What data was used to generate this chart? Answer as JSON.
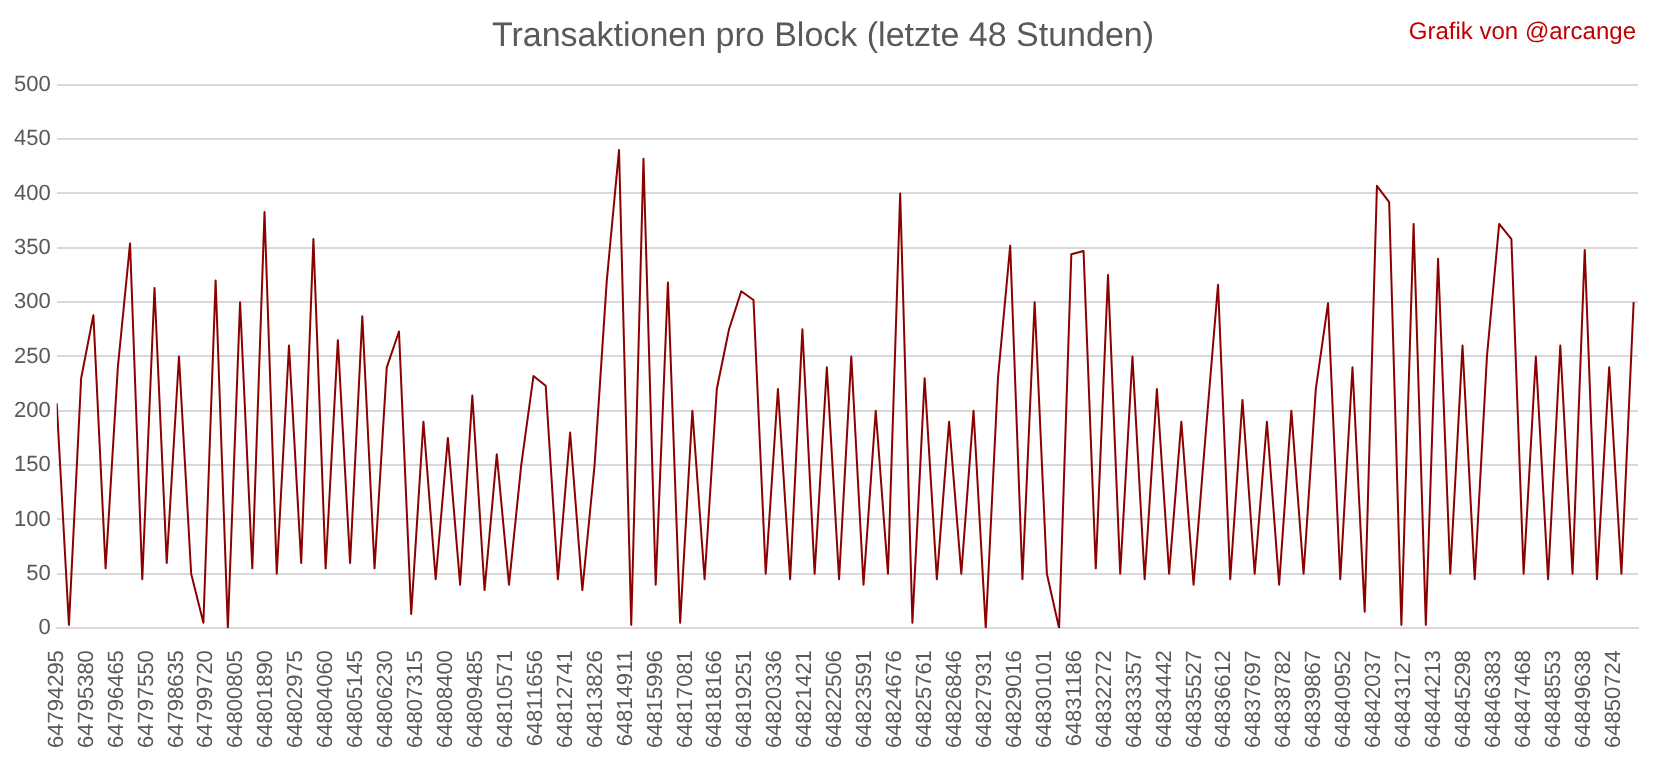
{
  "chart_data": {
    "type": "line",
    "title": "Transaktionen pro Block (letzte 48 Stunden)",
    "annotations": [
      "Grafik von @arcange"
    ],
    "grid": "y",
    "legend": false,
    "marker": "none",
    "line_style": "solid",
    "xlim": [
      64794295,
      64851600
    ],
    "ylim": [
      0,
      500
    ],
    "yticks": [
      0,
      50,
      100,
      150,
      200,
      250,
      300,
      350,
      400,
      450,
      500
    ],
    "xticks": [
      64794295,
      64795380,
      64796465,
      64797550,
      64798635,
      64799720,
      64800805,
      64801890,
      64802975,
      64804060,
      64805145,
      64806230,
      64807315,
      64808400,
      64809485,
      64810571,
      64811656,
      64812741,
      64813826,
      64814911,
      64815996,
      64817081,
      64818166,
      64819251,
      64820336,
      64821421,
      64822506,
      64823591,
      64824676,
      64825761,
      64826846,
      64827931,
      64829016,
      64830101,
      64831186,
      64832272,
      64833357,
      64834442,
      64835527,
      64836612,
      64837697,
      64838782,
      64839867,
      64840952,
      64842037,
      64843127,
      64844213,
      64845298,
      64846383,
      64847468,
      64848553,
      64849638,
      64850724
    ],
    "series": [
      {
        "color": "#8b0000",
        "x": [
          64794295,
          64794738,
          64795181,
          64795624,
          64796067,
          64796510,
          64796953,
          64797396,
          64797839,
          64798282,
          64798725,
          64799168,
          64799611,
          64800054,
          64800497,
          64800940,
          64801383,
          64801826,
          64802269,
          64802712,
          64803155,
          64803598,
          64804041,
          64804484,
          64804927,
          64805370,
          64805813,
          64806256,
          64806699,
          64807142,
          64807585,
          64808028,
          64808471,
          64808914,
          64809357,
          64809800,
          64810243,
          64810686,
          64811129,
          64811572,
          64812015,
          64812458,
          64812901,
          64813344,
          64813787,
          64814230,
          64814673,
          64815116,
          64815559,
          64816002,
          64816445,
          64816888,
          64817331,
          64817774,
          64818217,
          64818660,
          64819103,
          64819546,
          64819989,
          64820432,
          64820875,
          64821318,
          64821761,
          64822204,
          64822647,
          64823090,
          64823533,
          64823976,
          64824419,
          64824862,
          64825305,
          64825748,
          64826191,
          64826634,
          64827077,
          64827520,
          64827963,
          64828406,
          64828849,
          64829292,
          64829735,
          64830178,
          64830621,
          64831064,
          64831507,
          64831950,
          64832393,
          64832836,
          64833279,
          64833722,
          64834165,
          64834608,
          64835051,
          64835494,
          64835937,
          64836380,
          64836823,
          64837266,
          64837709,
          64838152,
          64838595,
          64839038,
          64839481,
          64839924,
          64840367,
          64840810,
          64841253,
          64841696,
          64842139,
          64842582,
          64843025,
          64843468,
          64843911,
          64844354,
          64844797,
          64845240,
          64845683,
          64846126,
          64846569,
          64847012,
          64847455,
          64847898,
          64848341,
          64848784,
          64849227,
          64849670,
          64850113,
          64850556,
          64850999,
          64851442
        ],
        "values": [
          207,
          3,
          230,
          288,
          55,
          240,
          354,
          45,
          313,
          60,
          250,
          50,
          5,
          320,
          0,
          300,
          55,
          383,
          50,
          260,
          60,
          358,
          55,
          265,
          60,
          287,
          55,
          240,
          273,
          13,
          190,
          45,
          175,
          40,
          214,
          35,
          160,
          40,
          150,
          232,
          223,
          45,
          180,
          35,
          150,
          320,
          440,
          3,
          432,
          40,
          318,
          5,
          200,
          45,
          220,
          275,
          310,
          302,
          50,
          220,
          45,
          275,
          50,
          240,
          45,
          250,
          40,
          200,
          50,
          400,
          5,
          230,
          45,
          190,
          50,
          200,
          0,
          230,
          352,
          45,
          300,
          50,
          0,
          344,
          347,
          55,
          325,
          50,
          250,
          45,
          220,
          50,
          190,
          40,
          180,
          316,
          45,
          210,
          50,
          190,
          40,
          200,
          50,
          220,
          299,
          45,
          240,
          15,
          407,
          392,
          3,
          372,
          3,
          340,
          50,
          260,
          45,
          250,
          372,
          358,
          50,
          250,
          45,
          260,
          50,
          348,
          45,
          240,
          50,
          300
        ]
      }
    ]
  }
}
